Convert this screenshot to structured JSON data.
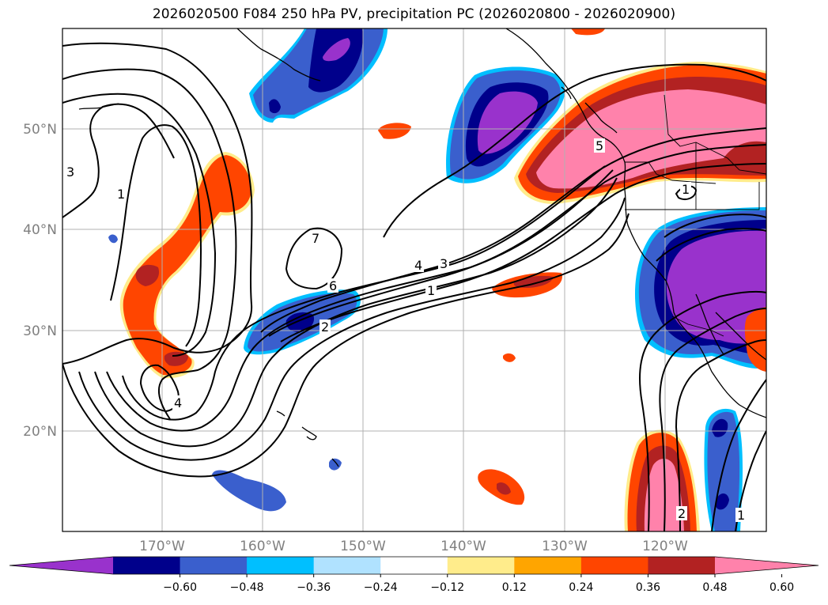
{
  "title": "2026020500 F084 250 hPa PV, precipitation PC (2026020800 - 2026020900)",
  "lat_labels": [
    "50°N",
    "40°N",
    "30°N",
    "20°N"
  ],
  "lon_labels": [
    "170°W",
    "160°W",
    "150°W",
    "140°W",
    "130°W",
    "120°W"
  ],
  "colorbar": {
    "ticks": [
      "−0.60",
      "−0.48",
      "−0.36",
      "−0.24",
      "−0.12",
      "0.12",
      "0.24",
      "0.36",
      "0.48",
      "0.60"
    ],
    "colors": [
      "#9932cc",
      "#00008b",
      "#3a5fcd",
      "#00bfff",
      "#b0e2ff",
      "#ffffff",
      "#ffec8b",
      "#ffa500",
      "#ff4500",
      "#b22222",
      "#ff82ab"
    ]
  },
  "contour_labels": [
    "3",
    "1",
    "7",
    "6",
    "4",
    "3",
    "1",
    "2",
    "4",
    "5",
    "1",
    "2",
    "1"
  ]
}
